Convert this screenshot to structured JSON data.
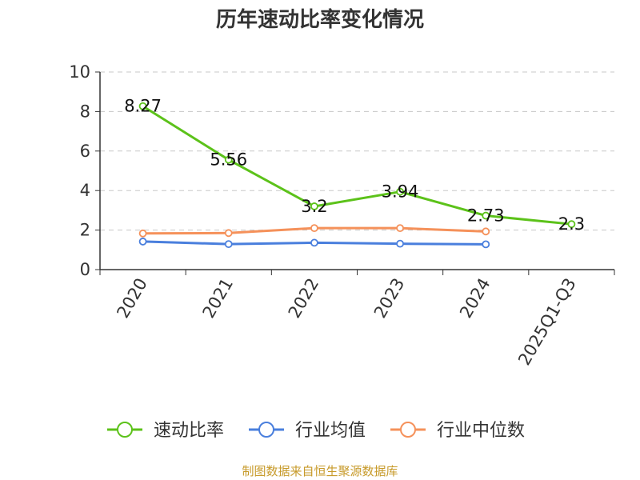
{
  "chart_data": {
    "type": "line",
    "title": "历年速动比率变化情况",
    "categories": [
      "2020",
      "2021",
      "2022",
      "2023",
      "2024",
      "2025Q1-Q3"
    ],
    "ylim": [
      0,
      10
    ],
    "yticks": [
      0,
      2,
      4,
      6,
      8,
      10
    ],
    "grid": true,
    "legend_position": "bottom",
    "series": [
      {
        "name": "速动比率",
        "color": "#5cc21a",
        "values": [
          8.27,
          5.56,
          3.2,
          3.94,
          2.73,
          2.3
        ],
        "labels": [
          "8.27",
          "5.56",
          "3.2",
          "3.94",
          "2.73",
          "2.3"
        ]
      },
      {
        "name": "行业均值",
        "color": "#4a7fdd",
        "values": [
          1.42,
          1.29,
          1.36,
          1.31,
          1.28,
          null
        ]
      },
      {
        "name": "行业中位数",
        "color": "#f5915a",
        "values": [
          1.83,
          1.85,
          2.1,
          2.1,
          1.93,
          null
        ]
      }
    ]
  },
  "source": {
    "text": "制图数据来自恒生聚源数据库",
    "color": "#c79a2a"
  }
}
